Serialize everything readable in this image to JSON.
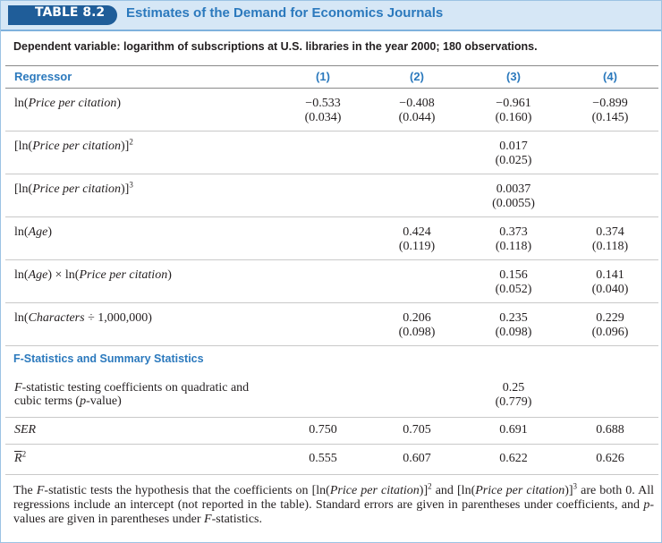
{
  "header": {
    "label": "TABLE 8.2",
    "title": "Estimates of the Demand for Economics Journals"
  },
  "subtitle": "Dependent variable: logarithm of subscriptions at U.S. libraries in the year 2000; 180 observations.",
  "table": {
    "columns": [
      "Regressor",
      "(1)",
      "(2)",
      "(3)",
      "(4)"
    ],
    "rows": [
      {
        "label": [
          {
            "text": "ln("
          },
          {
            "text": "Price per citation",
            "style": "italic"
          },
          {
            "text": ")"
          }
        ],
        "cells": [
          {
            "est": "−0.533",
            "se": "(0.034)"
          },
          {
            "est": "−0.408",
            "se": "(0.044)"
          },
          {
            "est": "−0.961",
            "se": "(0.160)"
          },
          {
            "est": "−0.899",
            "se": "(0.145)"
          }
        ]
      },
      {
        "label": [
          {
            "text": "[ln("
          },
          {
            "text": "Price per citation",
            "style": "italic"
          },
          {
            "text": ")]"
          },
          {
            "text": "2",
            "style": "sup"
          }
        ],
        "cells": [
          null,
          null,
          {
            "est": "0.017",
            "se": "(0.025)"
          },
          null
        ]
      },
      {
        "label": [
          {
            "text": "[ln("
          },
          {
            "text": "Price per citation",
            "style": "italic"
          },
          {
            "text": ")]"
          },
          {
            "text": "3",
            "style": "sup"
          }
        ],
        "cells": [
          null,
          null,
          {
            "est": "0.0037",
            "se": "(0.0055)"
          },
          null
        ]
      },
      {
        "label": [
          {
            "text": "ln("
          },
          {
            "text": "Age",
            "style": "italic"
          },
          {
            "text": ")"
          }
        ],
        "cells": [
          null,
          {
            "est": "0.424",
            "se": "(0.119)"
          },
          {
            "est": "0.373",
            "se": "(0.118)"
          },
          {
            "est": "0.374",
            "se": "(0.118)"
          }
        ]
      },
      {
        "label": [
          {
            "text": "ln("
          },
          {
            "text": "Age",
            "style": "italic"
          },
          {
            "text": ") × ln("
          },
          {
            "text": "Price per citation",
            "style": "italic"
          },
          {
            "text": ")"
          }
        ],
        "cells": [
          null,
          null,
          {
            "est": "0.156",
            "se": "(0.052)"
          },
          {
            "est": "0.141",
            "se": "(0.040)"
          }
        ]
      },
      {
        "label": [
          {
            "text": "ln("
          },
          {
            "text": "Characters",
            "style": "italic"
          },
          {
            "text": " ÷ 1,000,000)"
          }
        ],
        "cells": [
          null,
          {
            "est": "0.206",
            "se": "(0.098)"
          },
          {
            "est": "0.235",
            "se": "(0.098)"
          },
          {
            "est": "0.229",
            "se": "(0.096)"
          }
        ]
      }
    ],
    "section": "F-Statistics and Summary Statistics",
    "summary_rows": [
      {
        "label": [
          {
            "text": "F",
            "style": "italic"
          },
          {
            "text": "-statistic testing coefficients on quadratic and cubic terms ("
          },
          {
            "text": "p",
            "style": "italic"
          },
          {
            "text": "-value)"
          }
        ],
        "cells": [
          null,
          null,
          {
            "est": "0.25",
            "se": "(0.779)"
          },
          null
        ]
      },
      {
        "label": [
          {
            "text": "SER",
            "style": "italic"
          }
        ],
        "cells": [
          {
            "est": "0.750"
          },
          {
            "est": "0.705"
          },
          {
            "est": "0.691"
          },
          {
            "est": "0.688"
          }
        ]
      },
      {
        "label": [
          {
            "text": "R",
            "style": "overline"
          },
          {
            "text": "2",
            "style": "sup"
          }
        ],
        "cells": [
          {
            "est": "0.555"
          },
          {
            "est": "0.607"
          },
          {
            "est": "0.622"
          },
          {
            "est": "0.626"
          }
        ]
      }
    ]
  },
  "footnote": [
    {
      "text": "The "
    },
    {
      "text": "F",
      "style": "italic"
    },
    {
      "text": "-statistic tests the hypothesis that the coefficients on [ln("
    },
    {
      "text": "Price per citation",
      "style": "italic"
    },
    {
      "text": ")]"
    },
    {
      "text": "2",
      "style": "sup"
    },
    {
      "text": " and [ln("
    },
    {
      "text": "Price per citation",
      "style": "italic"
    },
    {
      "text": ")]"
    },
    {
      "text": "3",
      "style": "sup"
    },
    {
      "text": " are both 0. All regressions include an intercept (not reported in the table). Standard errors are given in parentheses under coefficients, and "
    },
    {
      "text": "p",
      "style": "italic"
    },
    {
      "text": "-values are given in parentheses under "
    },
    {
      "text": "F",
      "style": "italic"
    },
    {
      "text": "-statistics."
    }
  ]
}
